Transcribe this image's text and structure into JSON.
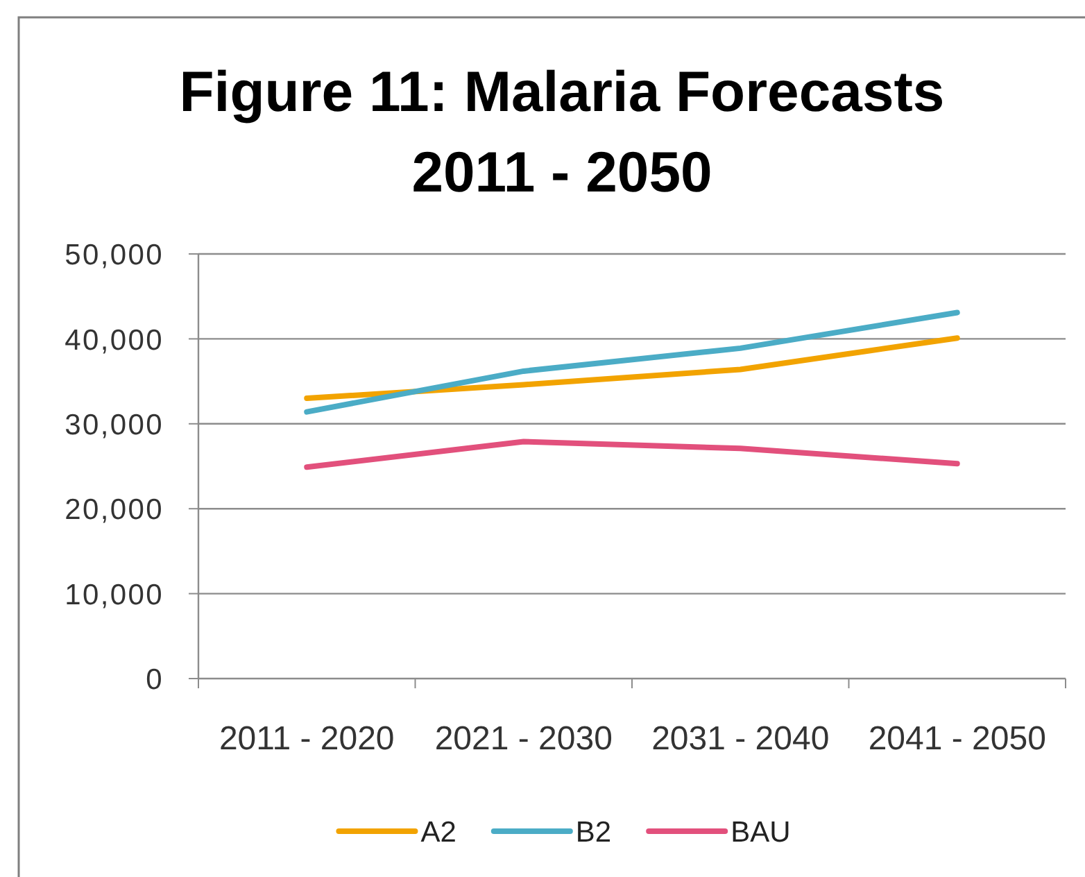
{
  "chart_data": {
    "type": "line",
    "title": "Figure 11: Malaria Forecasts 2011 - 2050",
    "categories": [
      "2011 - 2020",
      "2021 - 2030",
      "2031 - 2040",
      "2041 - 2050"
    ],
    "series": [
      {
        "name": "A2",
        "color": "#f2a300",
        "values": [
          33000,
          34600,
          36400,
          40100
        ]
      },
      {
        "name": "B2",
        "color": "#4bacc6",
        "values": [
          31400,
          36200,
          38900,
          43100
        ]
      },
      {
        "name": "BAU",
        "color": "#e2507c",
        "values": [
          24900,
          27900,
          27100,
          25300
        ]
      }
    ],
    "ylim": [
      0,
      50000
    ],
    "yticks": [
      0,
      {
        "value": 10000,
        "label": "10,000"
      },
      {
        "value": 20000,
        "label": "20,000"
      },
      {
        "value": 30000,
        "label": "30,000"
      },
      {
        "value": 40000,
        "label": "40,000"
      },
      {
        "value": 50000,
        "label": "50,000"
      }
    ],
    "grid": "y",
    "legend": "bottom"
  }
}
